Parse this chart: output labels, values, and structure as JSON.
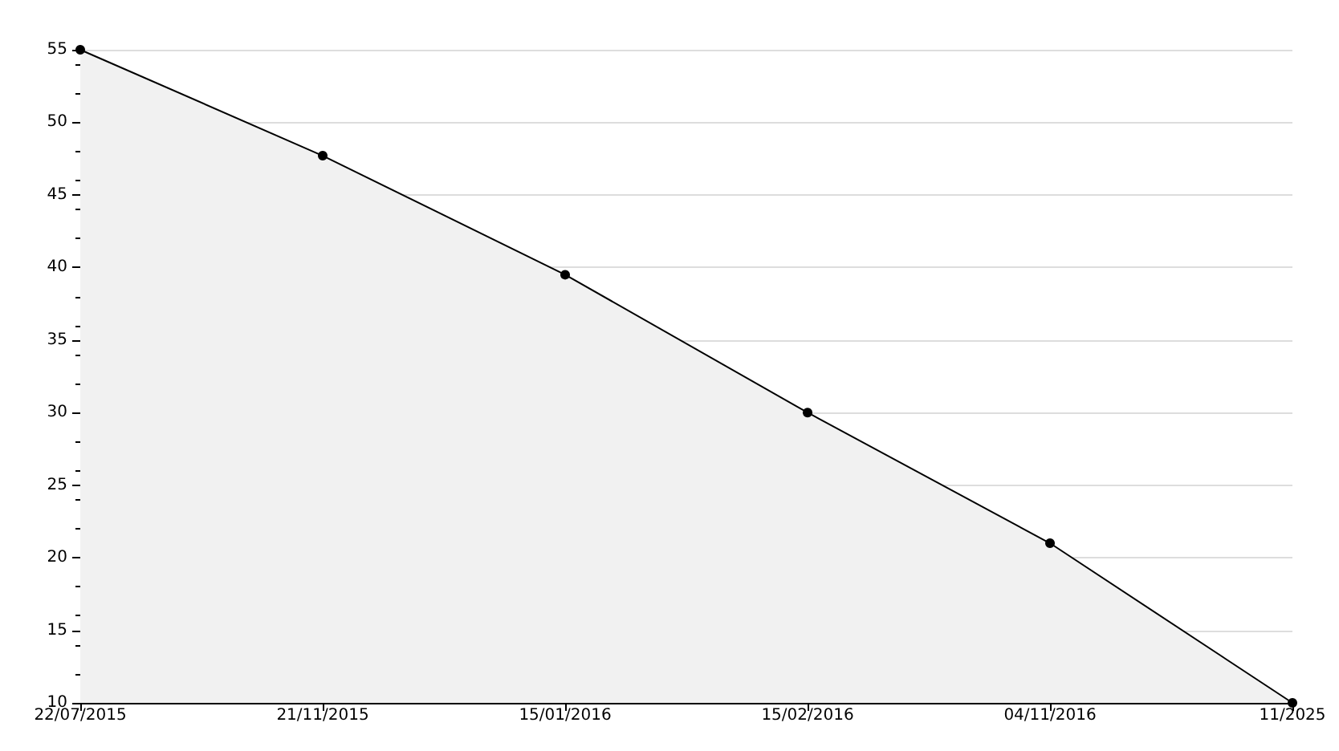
{
  "chart_data": {
    "type": "area",
    "categories": [
      "22/07/2015",
      "21/11/2015",
      "15/01/2016",
      "15/02/2016",
      "04/11/2016",
      "11/2025"
    ],
    "series": [
      {
        "color": "#000000",
        "values": [
          55,
          47.7,
          39.5,
          30,
          21,
          10
        ]
      }
    ],
    "ylim": [
      10,
      55
    ],
    "yticks": [
      10,
      15,
      20,
      25,
      30,
      35,
      40,
      45,
      50,
      55
    ],
    "grid": "y",
    "marker": "circle",
    "line_style": "solid"
  }
}
